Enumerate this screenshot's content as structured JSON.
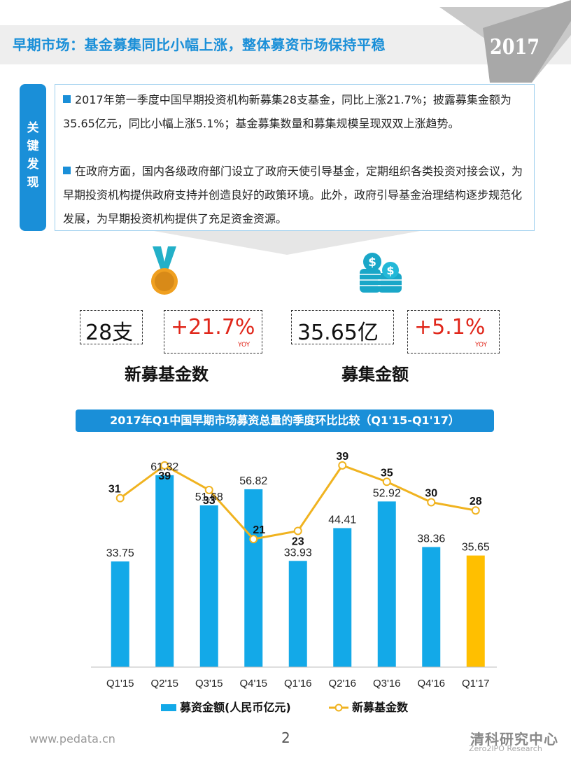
{
  "header": {
    "title": "早期市场：基金募集同比小幅上涨，整体募资市场保持平稳",
    "year": "2017"
  },
  "key_findings": {
    "tab_label": "关键发现",
    "paragraphs": [
      "2017年第一季度中国早期投资机构新募集28支基金，同比上涨21.7%；披露募集金额为35.65亿元，同比小幅上涨5.1%；基金募集数量和募集规模呈现双双上涨趋势。",
      "在政府方面，国内各级政府部门设立了政府天使引导基金，定期组织各类投资对接会议，为早期投资机构提供政府支持并创造良好的政策环境。此外，政府引导基金治理结构逐步规范化发展，为早期投资机构提供了充足资金资源。"
    ]
  },
  "stats": {
    "funds": {
      "value": "28支",
      "change": "+21.7%",
      "yoy": "YOY",
      "label": "新募基金数",
      "icon": "medal-icon"
    },
    "amount": {
      "value": "35.65亿",
      "change": "+5.1%",
      "yoy": "YOY",
      "label": "募集金额",
      "icon": "coin-stack-icon"
    }
  },
  "chart_title": "2017年Q1中国早期市场募资总量的季度环比比较（Q1'15-Q1'17）",
  "chart_data": {
    "type": "bar",
    "categories": [
      "Q1'15",
      "Q2'15",
      "Q3'15",
      "Q4'15",
      "Q1'16",
      "Q2'16",
      "Q3'16",
      "Q4'16",
      "Q1'17"
    ],
    "series": [
      {
        "name": "募资金额(人民币亿元)",
        "type": "bar",
        "values": [
          33.75,
          61.32,
          51.68,
          56.82,
          33.93,
          44.41,
          52.92,
          38.36,
          35.65
        ],
        "color": "#13a9e8",
        "highlight_color": "#ffbf00"
      },
      {
        "name": "新募基金数",
        "type": "line",
        "values": [
          31,
          39,
          33,
          21,
          23,
          39,
          35,
          30,
          28
        ],
        "color": "#f0b320"
      }
    ],
    "legend_position": "bottom"
  },
  "footer": {
    "url": "www.pedata.cn",
    "page": "2",
    "brand_cn": "清科研究中心",
    "brand_en": "Zero2IPO Research"
  }
}
